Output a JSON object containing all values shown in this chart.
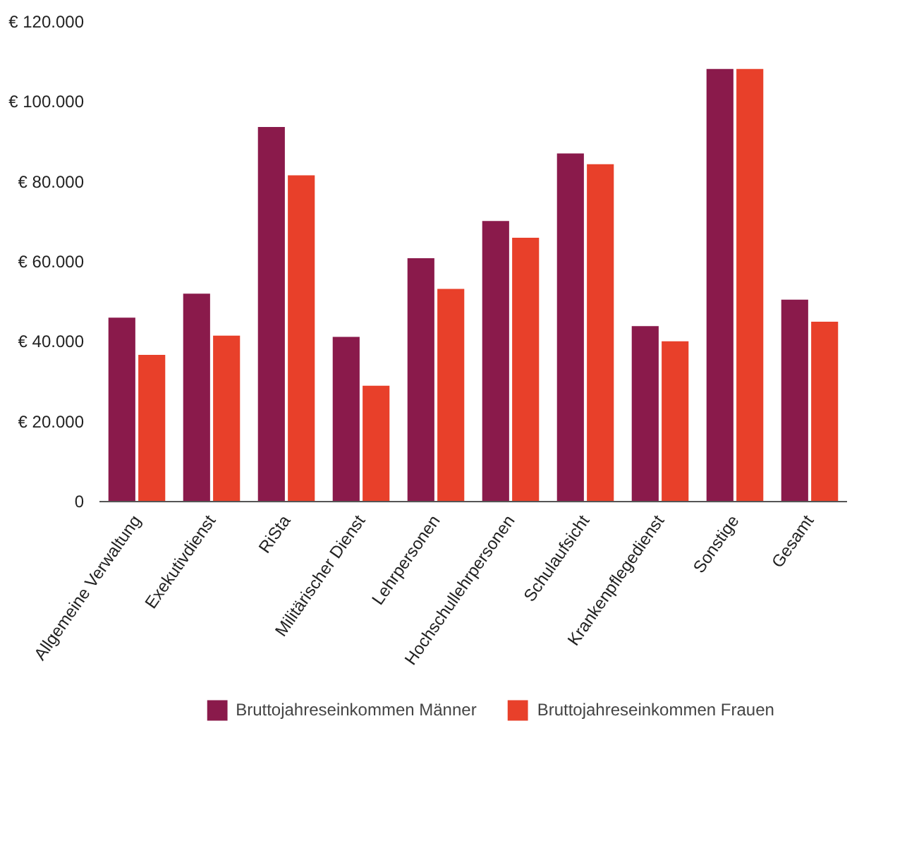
{
  "chart_data": {
    "type": "bar",
    "categories": [
      "Allgemeine Verwaltung",
      "Exekutivdienst",
      "RiSta",
      "Militärischer Dienst",
      "Lehrpersonen",
      "Hochschullehrpersonen",
      "Schulaufsicht",
      "Krankenpflegedienst",
      "Sonstige",
      "Gesamt"
    ],
    "series": [
      {
        "name": "Bruttojahreseinkommen Männer",
        "color": "#8a1a4b",
        "values": [
          46000,
          52000,
          93700,
          41200,
          60900,
          70200,
          87100,
          43900,
          108200,
          50500
        ]
      },
      {
        "name": "Bruttojahreseinkommen Frauen",
        "color": "#e8402a",
        "values": [
          36700,
          41500,
          81600,
          29000,
          53200,
          66000,
          84400,
          40100,
          108200,
          45000
        ]
      }
    ],
    "ylim": [
      0,
      120000
    ],
    "yticks": [
      {
        "value": 0,
        "label": "0"
      },
      {
        "value": 20000,
        "label": "€ 20.000"
      },
      {
        "value": 40000,
        "label": "€ 40.000"
      },
      {
        "value": 60000,
        "label": "€ 60.000"
      },
      {
        "value": 80000,
        "label": "€ 80.000"
      },
      {
        "value": 100000,
        "label": "€ 100.000"
      },
      {
        "value": 120000,
        "label": "€ 120.000"
      }
    ],
    "grid": false,
    "legend": "bottom"
  }
}
